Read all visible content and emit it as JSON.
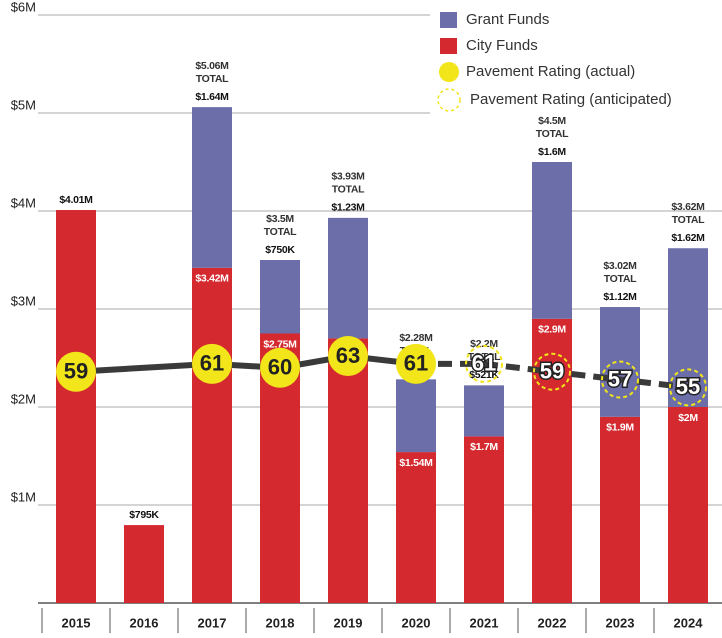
{
  "chart_data": {
    "type": "bar",
    "categories": [
      "2015",
      "2016",
      "2017",
      "2018",
      "2019",
      "2020",
      "2021",
      "2022",
      "2023",
      "2024"
    ],
    "ylim": [
      0,
      6000000
    ],
    "yticks": [
      {
        "value": 1000000,
        "label": "$1M"
      },
      {
        "value": 2000000,
        "label": "$2M"
      },
      {
        "value": 3000000,
        "label": "$3M"
      },
      {
        "value": 4000000,
        "label": "$4M"
      },
      {
        "value": 5000000,
        "label": "$5M"
      },
      {
        "value": 6000000,
        "label": "$6M"
      }
    ],
    "y2lim": [
      0,
      150
    ],
    "grid": true,
    "legend": "top-right",
    "series": [
      {
        "name": "City Funds",
        "color": "#d42a2f",
        "values": [
          4010000,
          795000,
          3420000,
          2750000,
          2700000,
          1540000,
          1700000,
          2900000,
          1900000,
          2000000
        ],
        "value_labels": [
          "$4.01M",
          "$795K",
          "$3.42M",
          "$2.75M",
          "$2.7M",
          "$1.54M",
          "$1.7M",
          "$2.9M",
          "$1.9M",
          "$2M"
        ]
      },
      {
        "name": "Grant Funds",
        "color": "#6b6ea8",
        "values": [
          null,
          null,
          1640000,
          750000,
          1230000,
          742000,
          521000,
          1600000,
          1120000,
          1620000
        ],
        "value_labels": [
          null,
          null,
          "$1.64M",
          "$750K",
          "$1.23M",
          "$742K",
          "$521K",
          "$1.6M",
          "$1.12M",
          "$1.62M"
        ]
      },
      {
        "name": "Pavement Rating (actual)",
        "color": "#f2e51a",
        "axis": "y2",
        "values": [
          59,
          null,
          61,
          60,
          63,
          61,
          null,
          null,
          null,
          null
        ]
      },
      {
        "name": "Pavement Rating (anticipated)",
        "color": "#f2e51a",
        "axis": "y2",
        "values": [
          null,
          null,
          null,
          null,
          null,
          null,
          61,
          59,
          57,
          55
        ]
      }
    ],
    "total_labels": [
      null,
      null,
      "$5.06M",
      "$3.5M",
      "$3.93M",
      "$2.28M",
      "$2.2M",
      "$4.5M",
      "$3.02M",
      "$3.62M"
    ],
    "total_caption": "TOTAL"
  }
}
